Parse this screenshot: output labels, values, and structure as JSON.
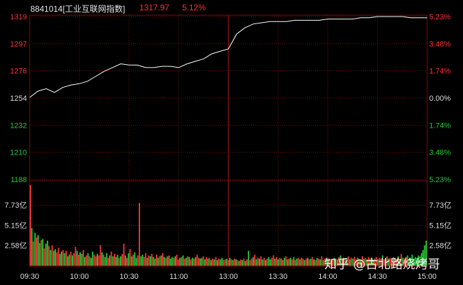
{
  "header": {
    "code_name": "8841014[工业互联网指数]",
    "price": "1317.97",
    "change_pct": "5.12%"
  },
  "colors": {
    "background": "#000000",
    "grid": "#7a1111",
    "up": "#ff3333",
    "down": "#22cc33",
    "neutral": "#dddddd",
    "price_line": "#ffffff"
  },
  "chart_data": [
    {
      "type": "line",
      "title": "",
      "series": [
        {
          "name": "",
          "x": [
            "09:30",
            "09:35",
            "09:40",
            "09:45",
            "09:50",
            "09:55",
            "10:00",
            "10:05",
            "10:10",
            "10:15",
            "10:20",
            "10:25",
            "10:30",
            "10:35",
            "10:40",
            "10:45",
            "10:50",
            "10:55",
            "11:00",
            "11:05",
            "11:10",
            "11:15",
            "11:20",
            "11:25",
            "11:30",
            "13:05",
            "13:10",
            "13:15",
            "13:20",
            "13:25",
            "13:30",
            "13:35",
            "13:40",
            "13:45",
            "13:50",
            "13:55",
            "14:00",
            "14:05",
            "14:10",
            "14:15",
            "14:20",
            "14:25",
            "14:30",
            "14:35",
            "14:40",
            "14:45",
            "14:50",
            "14:55",
            "15:00"
          ],
          "values": [
            1254,
            1259,
            1261,
            1258,
            1262,
            1264,
            1265,
            1267,
            1271,
            1275,
            1278,
            1281,
            1280,
            1280,
            1278,
            1278,
            1279,
            1279,
            1278,
            1281,
            1283,
            1285,
            1289,
            1291,
            1293,
            1305,
            1310,
            1313,
            1314,
            1315,
            1315,
            1315,
            1316,
            1316,
            1316,
            1316,
            1317,
            1317,
            1317,
            1317,
            1318,
            1318,
            1319,
            1319,
            1319,
            1319,
            1318,
            1318,
            1318
          ]
        }
      ],
      "y_ticks": [
        "1319",
        "1297",
        "1276",
        "1254",
        "1232",
        "1210",
        "1188"
      ],
      "y_ticks_right": [
        "5.23%",
        "3.48%",
        "1.74%",
        "0.00%",
        "1.74%",
        "3.48%",
        "5.23%"
      ],
      "ylim": [
        1188,
        1319
      ],
      "base": 1254,
      "grid": true
    },
    {
      "type": "bar",
      "title": "",
      "y_ticks": [
        "7.73亿",
        "5.15亿",
        "2.58亿"
      ],
      "y_ticks_right": [
        "7.73亿",
        "5.15亿",
        "2.58亿"
      ],
      "ylim": [
        0,
        10.3
      ],
      "x_ticks": [
        "09:30",
        "10:00",
        "10:30",
        "11:00",
        "13:00",
        "13:30",
        "14:00",
        "14:30",
        "15:00"
      ],
      "values": [
        10.3,
        4.8,
        3.1,
        4.2,
        3.6,
        3.9,
        2.9,
        3.3,
        3.4,
        2.2,
        2.8,
        3.2,
        2.5,
        2.0,
        2.6,
        1.9,
        2.1,
        1.7,
        2.3,
        1.5,
        1.8,
        2.0,
        1.6,
        1.9,
        1.2,
        1.4,
        1.8,
        1.3,
        1.6,
        2.4,
        1.9,
        1.4,
        1.7,
        1.5,
        2.0,
        1.1,
        1.3,
        1.6,
        1.2,
        1.0,
        1.8,
        1.4,
        1.2,
        1.5,
        1.3,
        2.6,
        1.7,
        1.4,
        1.1,
        1.6,
        1.0,
        1.3,
        1.8,
        1.2,
        1.5,
        1.1,
        1.4,
        1.0,
        1.2,
        1.5,
        2.8,
        1.3,
        1.0,
        1.6,
        2.1,
        1.2,
        1.4,
        1.7,
        1.0,
        1.3,
        8.0,
        1.2,
        1.4,
        1.1,
        1.6,
        1.0,
        1.3,
        1.2,
        1.5,
        1.1,
        0.9,
        1.4,
        1.0,
        1.2,
        1.3,
        1.6,
        1.1,
        1.0,
        1.2,
        1.3,
        0.9,
        1.1,
        1.0,
        1.2,
        1.4,
        0.8,
        1.0,
        1.1,
        1.3,
        0.9,
        1.0,
        1.2,
        1.1,
        0.8,
        1.0,
        0.9,
        1.1,
        1.4,
        1.0,
        0.9,
        1.0,
        1.2,
        0.8,
        1.1,
        0.9,
        1.0,
        0.7,
        0.9,
        0.8,
        1.1,
        0.7,
        0.9,
        0.8,
        1.0,
        0.7,
        0.8,
        0.9,
        0.7,
        1.0,
        0.8,
        0.7,
        0.9,
        0.8,
        0.7,
        0.6,
        0.8,
        0.7,
        0.9,
        0.6,
        0.8,
        1.9,
        0.7,
        0.9,
        1.1,
        1.4,
        0.8,
        1.0,
        0.9,
        1.2,
        0.8,
        1.0,
        0.7,
        0.9,
        1.1,
        0.8,
        1.0,
        1.3,
        0.9,
        1.1,
        0.8,
        1.0,
        0.9,
        0.7,
        1.0,
        1.2,
        0.8,
        0.9,
        1.0,
        0.8,
        1.1,
        0.7,
        0.9,
        1.0,
        0.8,
        1.0,
        0.9,
        0.7,
        0.9,
        1.0,
        0.8,
        0.9,
        1.1,
        0.8,
        0.7,
        1.0,
        0.9,
        0.8,
        1.2,
        0.7,
        0.9,
        0.8,
        1.0,
        0.9,
        0.7,
        0.8,
        1.0,
        0.9,
        0.8,
        1.1,
        1.3,
        0.9,
        1.0,
        0.8,
        0.9,
        1.2,
        0.8,
        1.0,
        0.9,
        1.1,
        0.8,
        1.0,
        0.9,
        0.8,
        1.2,
        0.9,
        1.0,
        0.8,
        1.1,
        0.9,
        1.0,
        0.8,
        0.9,
        1.1,
        0.8,
        1.0,
        0.9,
        1.3,
        0.8,
        1.0,
        1.2,
        0.9,
        1.0,
        0.8,
        1.1,
        1.0,
        0.9,
        1.2,
        0.8,
        1.5,
        1.0,
        0.9,
        1.1,
        1.3,
        0.9,
        1.0,
        1.4,
        0.9,
        1.1,
        1.0,
        1.3,
        1.2,
        1.6,
        2.0,
        2.6,
        3.2
      ],
      "colors": [
        "u",
        "d",
        "u",
        "d",
        "u",
        "d",
        "d",
        "u",
        "d",
        "u",
        "d",
        "d",
        "u",
        "d",
        "u",
        "d",
        "d",
        "u",
        "u",
        "d",
        "d",
        "u",
        "d",
        "u",
        "d",
        "d",
        "u",
        "d",
        "u",
        "u",
        "d",
        "u",
        "d",
        "d",
        "u",
        "d",
        "u",
        "d",
        "u",
        "d",
        "d",
        "u",
        "u",
        "d",
        "u",
        "u",
        "d",
        "u",
        "d",
        "d",
        "u",
        "d",
        "u",
        "d",
        "u",
        "d",
        "d",
        "u",
        "d",
        "u",
        "u",
        "d",
        "u",
        "d",
        "u",
        "d",
        "u",
        "d",
        "d",
        "u",
        "u",
        "d",
        "d",
        "u",
        "u",
        "d",
        "u",
        "d",
        "u",
        "d",
        "d",
        "u",
        "d",
        "u",
        "d",
        "u",
        "d",
        "u",
        "d",
        "u",
        "d",
        "d",
        "u",
        "d",
        "u",
        "u",
        "d",
        "u",
        "d",
        "u",
        "d",
        "u",
        "d",
        "u",
        "d",
        "u",
        "d",
        "u",
        "u",
        "d",
        "d",
        "u",
        "d",
        "u",
        "d",
        "u",
        "d",
        "u",
        "d",
        "u",
        "d",
        "u",
        "d",
        "d",
        "u",
        "u",
        "d",
        "u",
        "d",
        "u",
        "d",
        "u",
        "d",
        "u",
        "d",
        "u",
        "d",
        "u",
        "d",
        "u",
        "d",
        "u",
        "u",
        "d",
        "u",
        "d",
        "u",
        "d",
        "u",
        "d",
        "u",
        "d",
        "u",
        "d",
        "d",
        "u",
        "u",
        "d",
        "u",
        "d",
        "u",
        "d",
        "u",
        "d",
        "u",
        "d",
        "u",
        "d",
        "u",
        "d",
        "u",
        "d",
        "u",
        "d",
        "u",
        "u",
        "d",
        "u",
        "d",
        "u",
        "d",
        "u",
        "d",
        "u",
        "d",
        "u",
        "d",
        "u",
        "d",
        "u",
        "d",
        "u",
        "d",
        "u",
        "u",
        "d",
        "u",
        "d",
        "u",
        "d",
        "u",
        "d",
        "u",
        "d",
        "u",
        "d",
        "u",
        "d",
        "u",
        "u",
        "d",
        "u",
        "d",
        "u",
        "d",
        "u",
        "d",
        "u",
        "d",
        "u",
        "d",
        "u",
        "u",
        "d",
        "u",
        "u",
        "d",
        "u",
        "d",
        "u",
        "d",
        "u",
        "u",
        "d",
        "u",
        "u",
        "d",
        "u",
        "u",
        "d",
        "u",
        "u"
      ]
    }
  ],
  "watermark": "知乎 @古北路烧烤哥"
}
